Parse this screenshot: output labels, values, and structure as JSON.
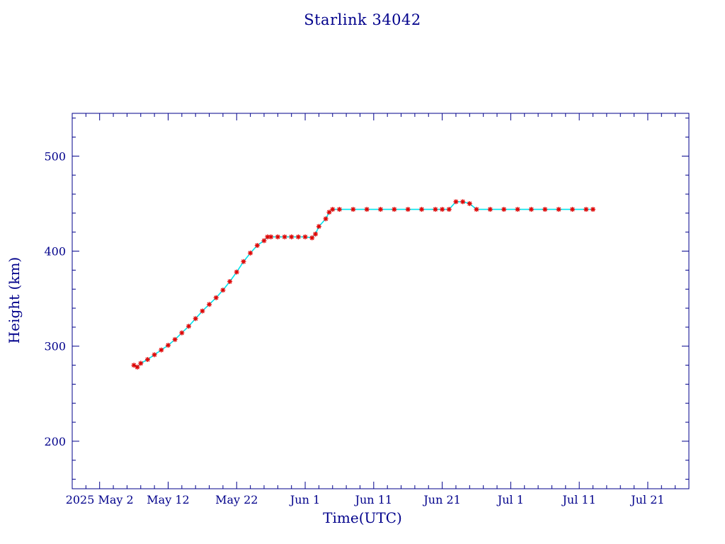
{
  "chart_data": {
    "type": "scatter",
    "title": "Starlink 34042",
    "xlabel": "Time(UTC)",
    "ylabel": "Height (km)",
    "x_ticks": [
      "2025 May 2",
      "May 12",
      "May 22",
      "Jun  1",
      "Jun 11",
      "Jun 21",
      "Jul  1",
      "Jul 11",
      "Jul 21"
    ],
    "yticks": [
      200,
      300,
      400,
      500
    ],
    "xlim": [
      "2025-04-28",
      "2025-07-27"
    ],
    "ylim": [
      150,
      545
    ],
    "colors": {
      "axis": "#00008b",
      "series": "#e00000",
      "series_connector": "#00e5ee"
    },
    "series": [
      {
        "marker": "asterisk",
        "x": [
          "2025-05-07",
          "2025-05-07T12:00",
          "2025-05-08",
          "2025-05-09",
          "2025-05-10",
          "2025-05-11",
          "2025-05-12",
          "2025-05-13",
          "2025-05-14",
          "2025-05-15",
          "2025-05-16",
          "2025-05-17",
          "2025-05-18",
          "2025-05-19",
          "2025-05-20",
          "2025-05-21",
          "2025-05-22",
          "2025-05-23",
          "2025-05-24",
          "2025-05-25",
          "2025-05-26",
          "2025-05-26T12:00",
          "2025-05-27",
          "2025-05-28",
          "2025-05-29",
          "2025-05-30",
          "2025-05-31",
          "2025-06-01",
          "2025-06-02",
          "2025-06-02T12:00",
          "2025-06-03",
          "2025-06-04",
          "2025-06-04T12:00",
          "2025-06-05",
          "2025-06-06",
          "2025-06-08",
          "2025-06-10",
          "2025-06-12",
          "2025-06-14",
          "2025-06-16",
          "2025-06-18",
          "2025-06-20",
          "2025-06-21",
          "2025-06-22",
          "2025-06-23",
          "2025-06-24",
          "2025-06-25",
          "2025-06-26",
          "2025-06-28",
          "2025-06-30",
          "2025-07-02",
          "2025-07-04",
          "2025-07-06",
          "2025-07-08",
          "2025-07-10",
          "2025-07-12",
          "2025-07-13"
        ],
        "y": [
          280,
          278,
          282,
          286,
          291,
          296,
          301,
          307,
          314,
          321,
          329,
          337,
          344,
          351,
          359,
          368,
          378,
          389,
          398,
          406,
          411,
          415,
          415,
          415,
          415,
          415,
          415,
          415,
          414,
          418,
          426,
          434,
          441,
          444,
          444,
          444,
          444,
          444,
          444,
          444,
          444,
          444,
          444,
          444,
          452,
          452,
          450,
          444,
          444,
          444,
          444,
          444,
          444,
          444,
          444,
          444,
          444
        ]
      }
    ]
  }
}
